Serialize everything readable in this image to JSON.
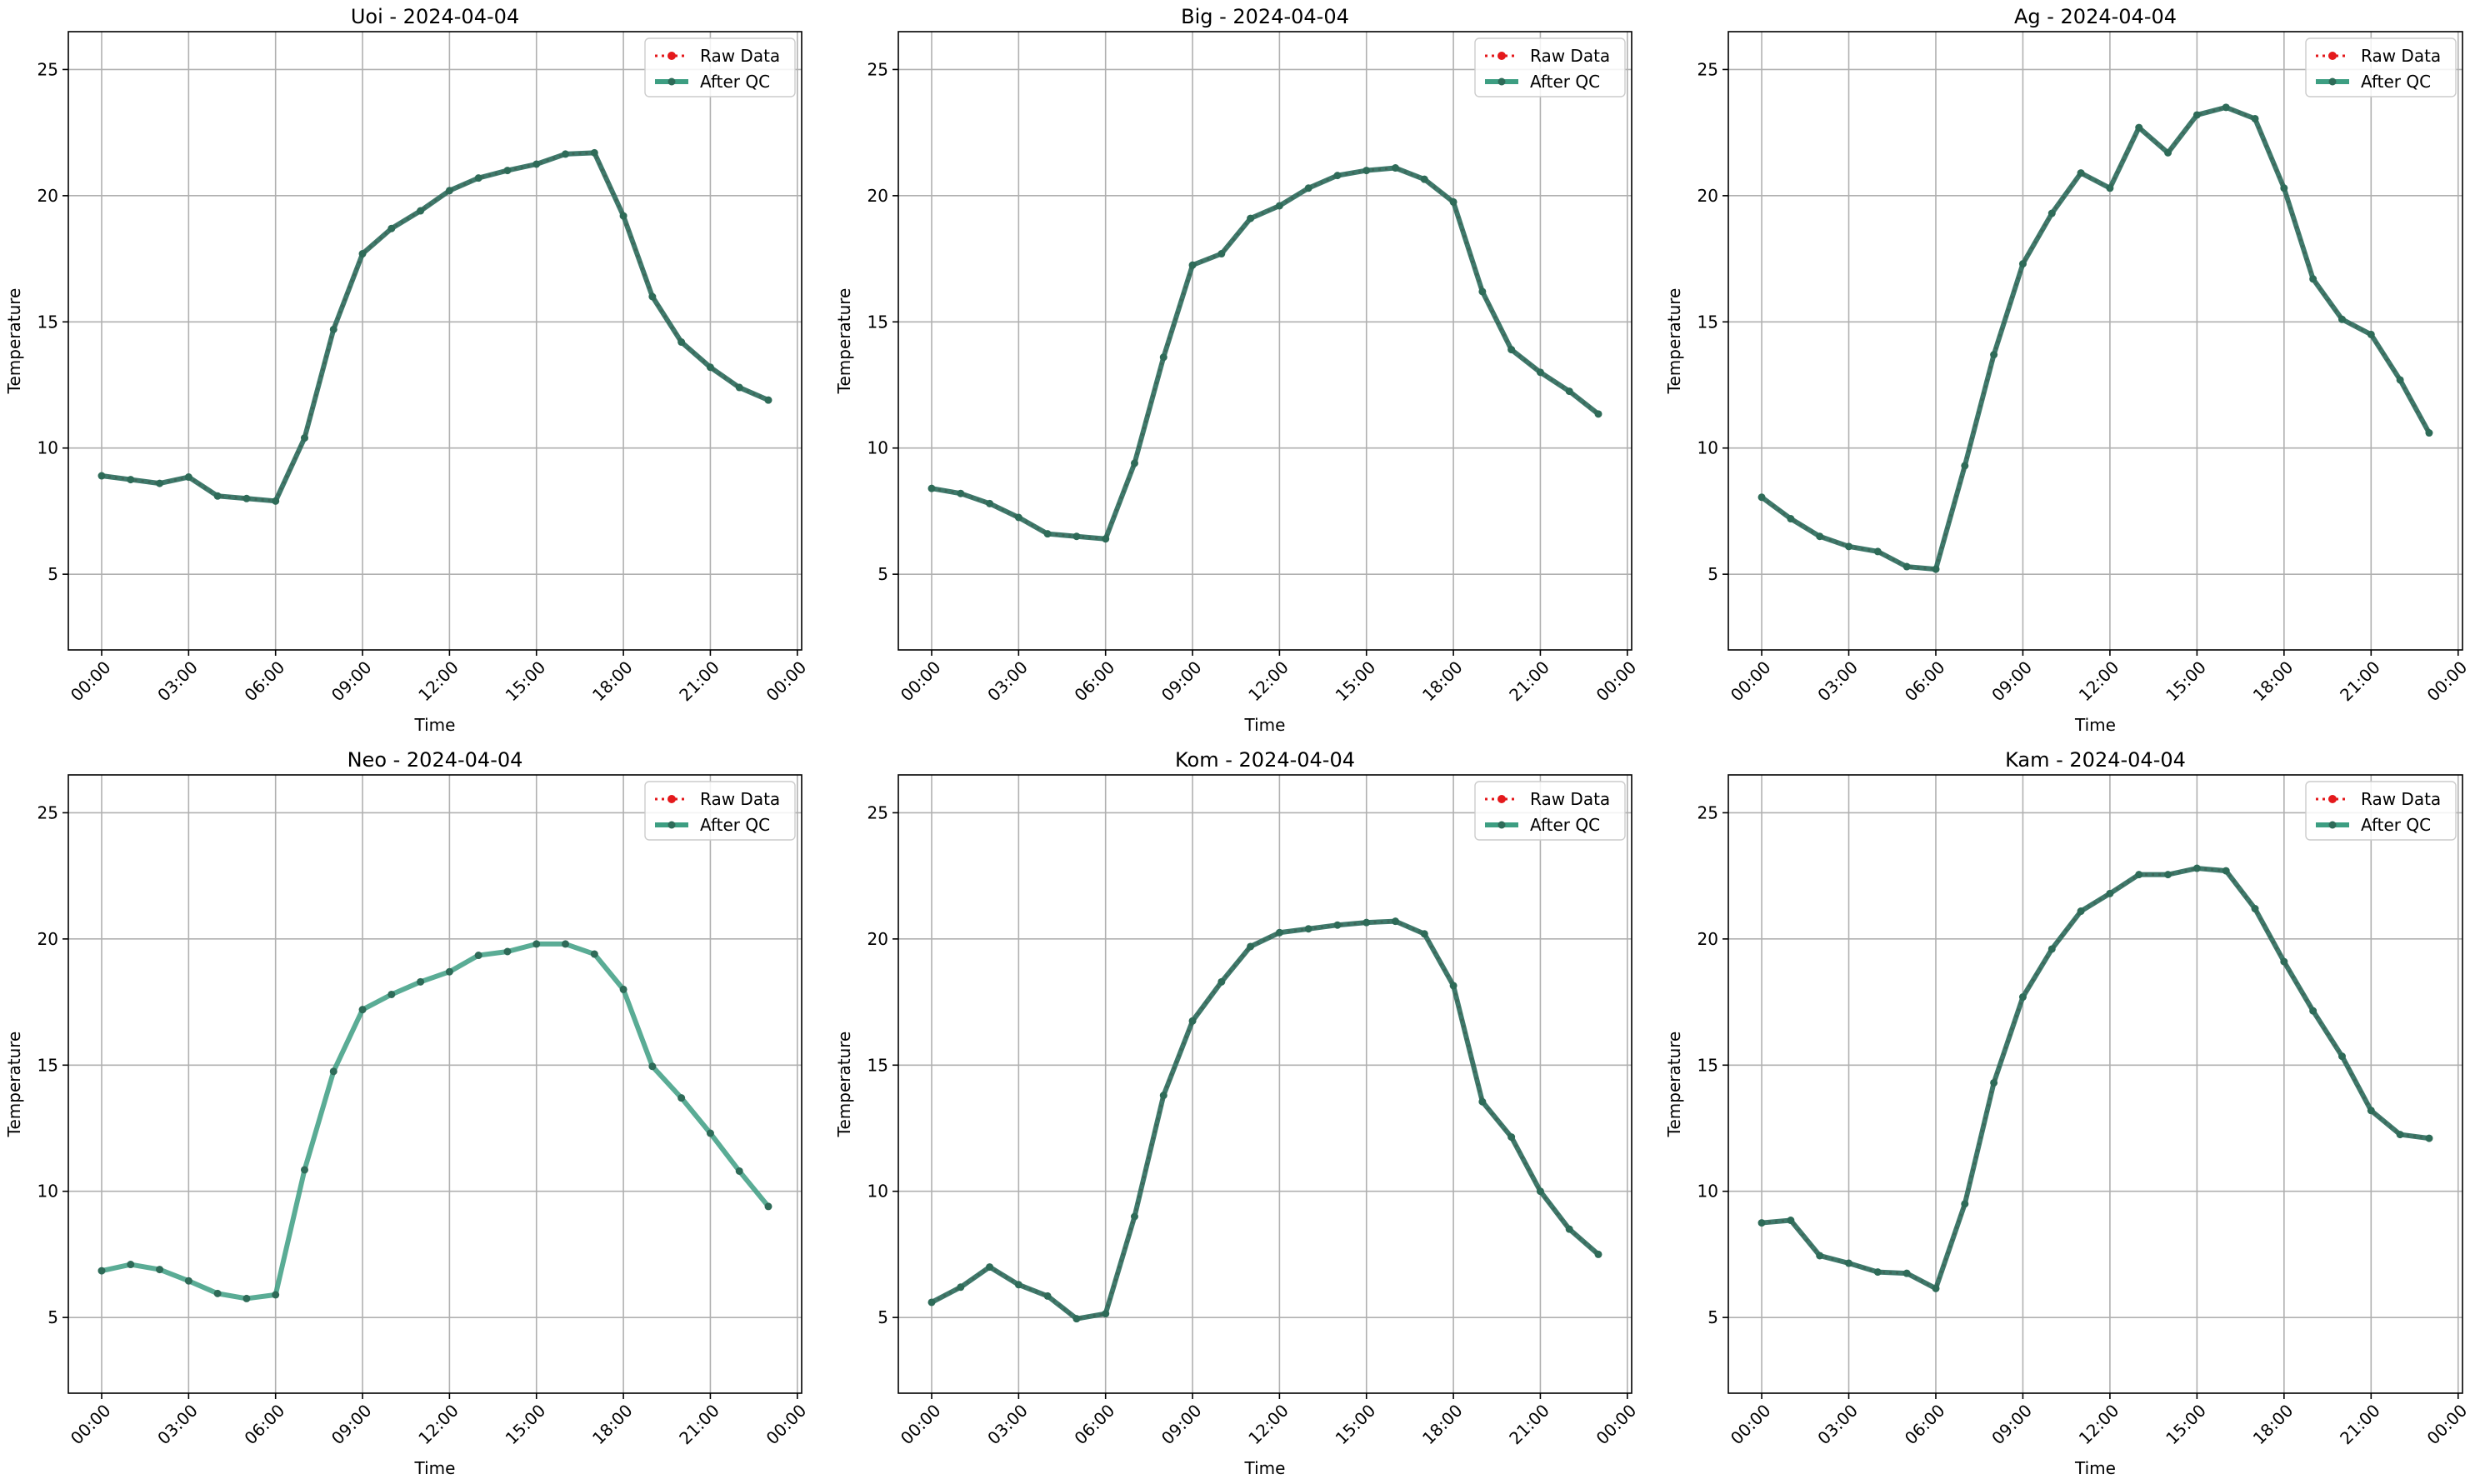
{
  "legend": {
    "raw_label": "Raw Data",
    "qc_label": "After QC",
    "placement": "top-right"
  },
  "colors": {
    "raw": "#e4191c",
    "qc": "#3d9e82",
    "overlap_line": "#2f6e5e",
    "marker": "#2e6b58"
  },
  "chart_data": [
    {
      "type": "line",
      "title": "Uoi - 2024-04-04",
      "xlabel": "Time",
      "ylabel": "Temperature",
      "ylim": [
        2,
        26.5
      ],
      "yticks": [
        "5",
        "10",
        "15",
        "20",
        "25"
      ],
      "xticks": [
        "00:00",
        "03:00",
        "06:00",
        "09:00",
        "12:00",
        "15:00",
        "18:00",
        "21:00",
        "00:00"
      ],
      "grid": true,
      "series": [
        {
          "name": "Raw Data",
          "x": [
            "00:00",
            "01:00",
            "02:00",
            "03:00",
            "04:00",
            "05:00",
            "06:00",
            "07:00",
            "08:00",
            "09:00",
            "10:00",
            "11:00",
            "12:00",
            "13:00",
            "14:00",
            "15:00",
            "16:00",
            "17:00",
            "18:00",
            "19:00",
            "20:00",
            "21:00",
            "22:00",
            "23:00"
          ],
          "values": [
            8.9,
            8.75,
            8.6,
            8.85,
            8.1,
            8.0,
            7.9,
            10.4,
            14.7,
            17.7,
            18.7,
            19.4,
            20.2,
            20.7,
            21.0,
            21.25,
            21.65,
            21.7,
            19.2,
            16.0,
            14.2,
            13.2,
            12.4,
            11.9
          ]
        },
        {
          "name": "After QC",
          "x": [
            "00:00",
            "01:00",
            "02:00",
            "03:00",
            "04:00",
            "05:00",
            "06:00",
            "07:00",
            "08:00",
            "09:00",
            "10:00",
            "11:00",
            "12:00",
            "13:00",
            "14:00",
            "15:00",
            "16:00",
            "17:00",
            "18:00",
            "19:00",
            "20:00",
            "21:00",
            "22:00",
            "23:00"
          ],
          "values": [
            8.9,
            8.75,
            8.6,
            8.85,
            8.1,
            8.0,
            7.9,
            10.4,
            14.7,
            17.7,
            18.7,
            19.4,
            20.2,
            20.7,
            21.0,
            21.25,
            21.65,
            21.7,
            19.2,
            16.0,
            14.2,
            13.2,
            12.4,
            11.9
          ]
        }
      ]
    },
    {
      "type": "line",
      "title": "Big - 2024-04-04",
      "xlabel": "Time",
      "ylabel": "Temperature",
      "ylim": [
        2,
        26.5
      ],
      "yticks": [
        "5",
        "10",
        "15",
        "20",
        "25"
      ],
      "xticks": [
        "00:00",
        "03:00",
        "06:00",
        "09:00",
        "12:00",
        "15:00",
        "18:00",
        "21:00",
        "00:00"
      ],
      "grid": true,
      "series": [
        {
          "name": "Raw Data",
          "x": [
            "00:00",
            "01:00",
            "02:00",
            "03:00",
            "04:00",
            "05:00",
            "06:00",
            "07:00",
            "08:00",
            "09:00",
            "10:00",
            "11:00",
            "12:00",
            "13:00",
            "14:00",
            "15:00",
            "16:00",
            "17:00",
            "18:00",
            "19:00",
            "20:00",
            "21:00",
            "22:00",
            "23:00"
          ],
          "values": [
            8.4,
            8.2,
            7.8,
            7.25,
            6.6,
            6.5,
            6.4,
            9.4,
            13.6,
            17.25,
            17.7,
            19.1,
            19.6,
            20.3,
            20.8,
            21.0,
            21.1,
            20.65,
            19.75,
            16.2,
            13.9,
            13.0,
            12.25,
            11.35
          ]
        },
        {
          "name": "After QC",
          "x": [
            "00:00",
            "01:00",
            "02:00",
            "03:00",
            "04:00",
            "05:00",
            "06:00",
            "07:00",
            "08:00",
            "09:00",
            "10:00",
            "11:00",
            "12:00",
            "13:00",
            "14:00",
            "15:00",
            "16:00",
            "17:00",
            "18:00",
            "19:00",
            "20:00",
            "21:00",
            "22:00",
            "23:00"
          ],
          "values": [
            8.4,
            8.2,
            7.8,
            7.25,
            6.6,
            6.5,
            6.4,
            9.4,
            13.6,
            17.25,
            17.7,
            19.1,
            19.6,
            20.3,
            20.8,
            21.0,
            21.1,
            20.65,
            19.75,
            16.2,
            13.9,
            13.0,
            12.25,
            11.35
          ]
        }
      ]
    },
    {
      "type": "line",
      "title": "Ag - 2024-04-04",
      "xlabel": "Time",
      "ylabel": "Temperature",
      "ylim": [
        2,
        26.5
      ],
      "yticks": [
        "5",
        "10",
        "15",
        "20",
        "25"
      ],
      "xticks": [
        "00:00",
        "03:00",
        "06:00",
        "09:00",
        "12:00",
        "15:00",
        "18:00",
        "21:00",
        "00:00"
      ],
      "grid": true,
      "series": [
        {
          "name": "Raw Data",
          "x": [
            "00:00",
            "01:00",
            "02:00",
            "03:00",
            "04:00",
            "05:00",
            "06:00",
            "07:00",
            "08:00",
            "09:00",
            "10:00",
            "11:00",
            "12:00",
            "13:00",
            "14:00",
            "15:00",
            "16:00",
            "17:00",
            "18:00",
            "19:00",
            "20:00",
            "21:00",
            "22:00",
            "23:00"
          ],
          "values": [
            8.05,
            7.2,
            6.5,
            6.1,
            5.9,
            5.3,
            5.2,
            9.3,
            13.7,
            17.3,
            19.3,
            20.9,
            20.3,
            22.7,
            21.7,
            23.2,
            23.5,
            23.05,
            20.3,
            16.7,
            15.1,
            14.5,
            12.7,
            10.6
          ]
        },
        {
          "name": "After QC",
          "x": [
            "00:00",
            "01:00",
            "02:00",
            "03:00",
            "04:00",
            "05:00",
            "06:00",
            "07:00",
            "08:00",
            "09:00",
            "10:00",
            "11:00",
            "12:00",
            "13:00",
            "14:00",
            "15:00",
            "16:00",
            "17:00",
            "18:00",
            "19:00",
            "20:00",
            "21:00",
            "22:00",
            "23:00"
          ],
          "values": [
            8.05,
            7.2,
            6.5,
            6.1,
            5.9,
            5.3,
            5.2,
            9.3,
            13.7,
            17.3,
            19.3,
            20.9,
            20.3,
            22.7,
            21.7,
            23.2,
            23.5,
            23.05,
            20.3,
            16.7,
            15.1,
            14.5,
            12.7,
            10.6
          ]
        }
      ]
    },
    {
      "type": "line",
      "title": "Neo - 2024-04-04",
      "xlabel": "Time",
      "ylabel": "Temperature",
      "ylim": [
        2,
        26.5
      ],
      "yticks": [
        "5",
        "10",
        "15",
        "20",
        "25"
      ],
      "xticks": [
        "00:00",
        "03:00",
        "06:00",
        "09:00",
        "12:00",
        "15:00",
        "18:00",
        "21:00",
        "00:00"
      ],
      "grid": true,
      "series": [
        {
          "name": "Raw Data",
          "x": [],
          "values": []
        },
        {
          "name": "After QC",
          "x": [
            "00:00",
            "01:00",
            "02:00",
            "03:00",
            "04:00",
            "05:00",
            "06:00",
            "07:00",
            "08:00",
            "09:00",
            "10:00",
            "11:00",
            "12:00",
            "13:00",
            "14:00",
            "15:00",
            "16:00",
            "17:00",
            "18:00",
            "19:00",
            "20:00",
            "21:00",
            "22:00",
            "23:00"
          ],
          "values": [
            6.85,
            7.1,
            6.9,
            6.45,
            5.95,
            5.75,
            5.9,
            10.85,
            14.75,
            17.2,
            17.8,
            18.3,
            18.7,
            19.35,
            19.5,
            19.8,
            19.8,
            19.4,
            18.0,
            14.95,
            13.7,
            12.3,
            10.8,
            9.4
          ]
        }
      ]
    },
    {
      "type": "line",
      "title": "Kom - 2024-04-04",
      "xlabel": "Time",
      "ylabel": "Temperature",
      "ylim": [
        2,
        26.5
      ],
      "yticks": [
        "5",
        "10",
        "15",
        "20",
        "25"
      ],
      "xticks": [
        "00:00",
        "03:00",
        "06:00",
        "09:00",
        "12:00",
        "15:00",
        "18:00",
        "21:00",
        "00:00"
      ],
      "grid": true,
      "series": [
        {
          "name": "Raw Data",
          "x": [
            "00:00",
            "01:00",
            "02:00",
            "03:00",
            "04:00",
            "05:00",
            "06:00",
            "07:00",
            "08:00",
            "09:00",
            "10:00",
            "11:00",
            "12:00",
            "13:00",
            "14:00",
            "15:00",
            "16:00",
            "17:00",
            "18:00",
            "19:00",
            "20:00",
            "21:00",
            "22:00",
            "23:00"
          ],
          "values": [
            5.6,
            6.2,
            7.0,
            6.3,
            5.85,
            4.95,
            5.15,
            9.0,
            13.8,
            16.75,
            18.3,
            19.7,
            20.25,
            20.4,
            20.55,
            20.65,
            20.7,
            20.2,
            18.15,
            13.55,
            12.15,
            10.0,
            8.5,
            7.5
          ]
        },
        {
          "name": "After QC",
          "x": [
            "00:00",
            "01:00",
            "02:00",
            "03:00",
            "04:00",
            "05:00",
            "06:00",
            "07:00",
            "08:00",
            "09:00",
            "10:00",
            "11:00",
            "12:00",
            "13:00",
            "14:00",
            "15:00",
            "16:00",
            "17:00",
            "18:00",
            "19:00",
            "20:00",
            "21:00",
            "22:00",
            "23:00"
          ],
          "values": [
            5.6,
            6.2,
            7.0,
            6.3,
            5.85,
            4.95,
            5.15,
            9.0,
            13.8,
            16.75,
            18.3,
            19.7,
            20.25,
            20.4,
            20.55,
            20.65,
            20.7,
            20.2,
            18.15,
            13.55,
            12.15,
            10.0,
            8.5,
            7.5
          ]
        }
      ]
    },
    {
      "type": "line",
      "title": "Kam - 2024-04-04",
      "xlabel": "Time",
      "ylabel": "Temperature",
      "ylim": [
        2,
        26.5
      ],
      "yticks": [
        "5",
        "10",
        "15",
        "20",
        "25"
      ],
      "xticks": [
        "00:00",
        "03:00",
        "06:00",
        "09:00",
        "12:00",
        "15:00",
        "18:00",
        "21:00",
        "00:00"
      ],
      "grid": true,
      "series": [
        {
          "name": "Raw Data",
          "x": [
            "00:00",
            "01:00",
            "02:00",
            "03:00",
            "04:00",
            "05:00",
            "06:00",
            "07:00",
            "08:00",
            "09:00",
            "10:00",
            "11:00",
            "12:00",
            "13:00",
            "14:00",
            "15:00",
            "16:00",
            "17:00",
            "18:00",
            "19:00",
            "20:00",
            "21:00",
            "22:00",
            "23:00"
          ],
          "values": [
            8.75,
            8.85,
            7.45,
            7.15,
            6.8,
            6.75,
            6.15,
            9.5,
            14.3,
            17.7,
            19.6,
            21.1,
            21.8,
            22.55,
            22.55,
            22.8,
            22.7,
            21.2,
            19.1,
            17.15,
            15.35,
            13.2,
            12.25,
            12.1
          ]
        },
        {
          "name": "After QC",
          "x": [
            "00:00",
            "01:00",
            "02:00",
            "03:00",
            "04:00",
            "05:00",
            "06:00",
            "07:00",
            "08:00",
            "09:00",
            "10:00",
            "11:00",
            "12:00",
            "13:00",
            "14:00",
            "15:00",
            "16:00",
            "17:00",
            "18:00",
            "19:00",
            "20:00",
            "21:00",
            "22:00",
            "23:00"
          ],
          "values": [
            8.75,
            8.85,
            7.45,
            7.15,
            6.8,
            6.75,
            6.15,
            9.5,
            14.3,
            17.7,
            19.6,
            21.1,
            21.8,
            22.55,
            22.55,
            22.8,
            22.7,
            21.2,
            19.1,
            17.15,
            15.35,
            13.2,
            12.25,
            12.1
          ]
        }
      ]
    }
  ]
}
